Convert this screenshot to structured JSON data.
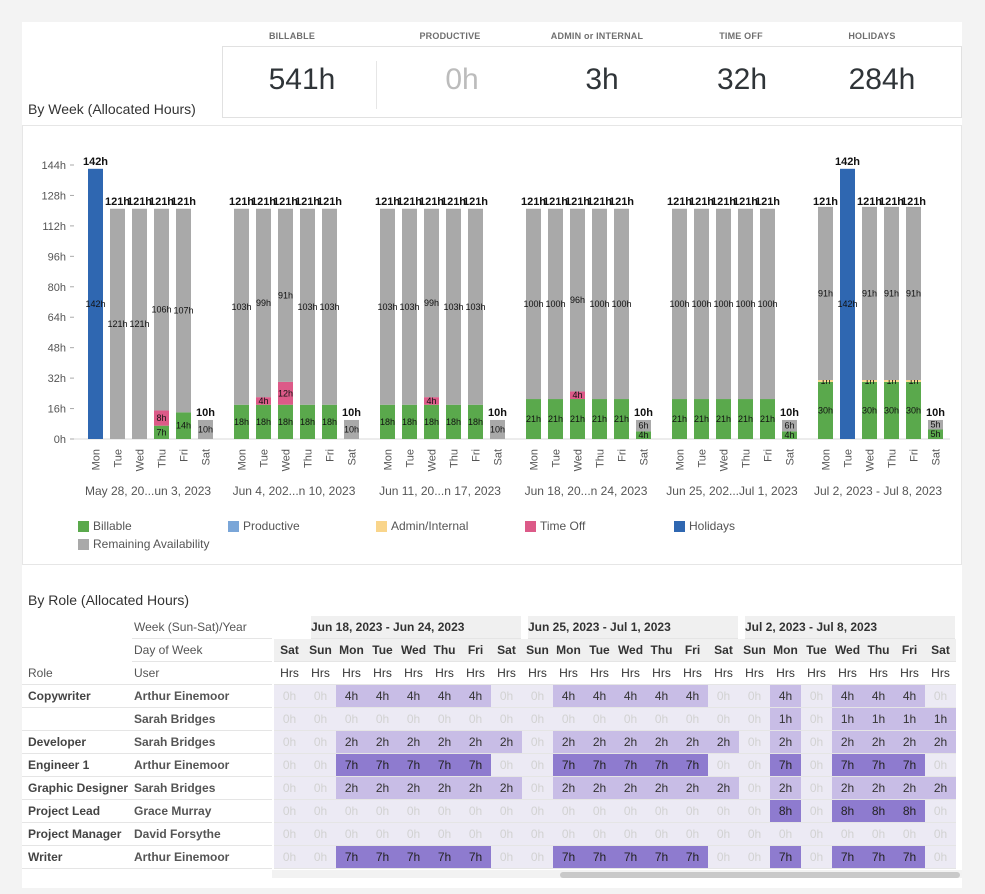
{
  "summary": {
    "labels": [
      "BILLABLE",
      "PRODUCTIVE",
      "ADMIN or INTERNAL",
      "TIME OFF",
      "HOLIDAYS"
    ],
    "values": [
      "541h",
      "0h",
      "3h",
      "32h",
      "284h"
    ]
  },
  "sections": {
    "by_week": "By Week (Allocated Hours)",
    "by_role": "By Role (Allocated Hours)"
  },
  "legend": [
    {
      "label": "Billable",
      "color": "#5aa94c"
    },
    {
      "label": "Productive",
      "color": "#7aa6d8"
    },
    {
      "label": "Admin/Internal",
      "color": "#f9d58b"
    },
    {
      "label": "Time Off",
      "color": "#dc5a88"
    },
    {
      "label": "Holidays",
      "color": "#2f67b1"
    },
    {
      "label": "Remaining Availability",
      "color": "#a9a9a9"
    }
  ],
  "chart_data": {
    "type": "bar",
    "ylim": [
      0,
      144
    ],
    "ytick_labels": [
      "0h",
      "16h",
      "32h",
      "48h",
      "64h",
      "80h",
      "96h",
      "112h",
      "128h",
      "144h"
    ],
    "weeks": [
      "May 28, 20...un 3, 2023",
      "Jun 4, 202...n 10, 2023",
      "Jun 11, 20...n 17, 2023",
      "Jun 18, 20...n 24, 2023",
      "Jun 25, 202...Jul 1, 2023",
      "Jul 2, 2023 - Jul 8, 2023"
    ],
    "days": [
      "Mon",
      "Tue",
      "Wed",
      "Thu",
      "Fri",
      "Sat"
    ],
    "series": [
      {
        "name": "Billable",
        "color": "#5aa94c",
        "values": [
          [
            0,
            0,
            0,
            7,
            14,
            0
          ],
          [
            18,
            18,
            18,
            18,
            18,
            0
          ],
          [
            18,
            18,
            18,
            18,
            18,
            0
          ],
          [
            21,
            21,
            21,
            21,
            21,
            4
          ],
          [
            21,
            21,
            21,
            21,
            21,
            4
          ],
          [
            30,
            0,
            30,
            30,
            30,
            5
          ]
        ]
      },
      {
        "name": "Admin/Internal",
        "color": "#f9d58b",
        "values": [
          [
            0,
            0,
            0,
            0,
            0,
            0
          ],
          [
            0,
            0,
            0,
            0,
            0,
            0
          ],
          [
            0,
            0,
            0,
            0,
            0,
            0
          ],
          [
            0,
            0,
            0,
            0,
            0,
            0
          ],
          [
            0,
            0,
            0,
            0,
            0,
            0
          ],
          [
            1,
            0,
            1,
            1,
            1,
            0
          ]
        ]
      },
      {
        "name": "Time Off",
        "color": "#dc5a88",
        "values": [
          [
            0,
            0,
            0,
            8,
            0,
            0
          ],
          [
            0,
            4,
            12,
            0,
            0,
            0
          ],
          [
            0,
            0,
            4,
            0,
            0,
            0
          ],
          [
            0,
            0,
            4,
            0,
            0,
            0
          ],
          [
            0,
            0,
            0,
            0,
            0,
            0
          ],
          [
            0,
            0,
            0,
            0,
            0,
            0
          ]
        ]
      },
      {
        "name": "Holidays",
        "color": "#2f67b1",
        "values": [
          [
            142,
            0,
            0,
            0,
            0,
            0
          ],
          [
            0,
            0,
            0,
            0,
            0,
            0
          ],
          [
            0,
            0,
            0,
            0,
            0,
            0
          ],
          [
            0,
            0,
            0,
            0,
            0,
            0
          ],
          [
            0,
            0,
            0,
            0,
            0,
            0
          ],
          [
            0,
            142,
            0,
            0,
            0,
            0
          ]
        ]
      },
      {
        "name": "Remaining Availability",
        "color": "#a9a9a9",
        "values": [
          [
            0,
            121,
            121,
            106,
            107,
            10
          ],
          [
            103,
            99,
            91,
            103,
            103,
            10
          ],
          [
            103,
            103,
            99,
            103,
            103,
            10
          ],
          [
            100,
            100,
            96,
            100,
            100,
            6
          ],
          [
            100,
            100,
            100,
            100,
            100,
            6
          ],
          [
            91,
            0,
            91,
            91,
            91,
            5
          ]
        ]
      }
    ],
    "totals": [
      [
        142,
        121,
        121,
        121,
        121,
        10
      ],
      [
        121,
        121,
        121,
        121,
        121,
        10
      ],
      [
        121,
        121,
        121,
        121,
        121,
        10
      ],
      [
        121,
        121,
        121,
        121,
        121,
        10
      ],
      [
        121,
        121,
        121,
        121,
        121,
        10
      ],
      [
        121,
        142,
        121,
        121,
        121,
        10
      ]
    ]
  },
  "table": {
    "left_headers": {
      "week_label": "Week (Sun-Sat)/Year",
      "day_label": "Day of Week",
      "role_col": "Role",
      "user_col": "User"
    },
    "week_groups": [
      {
        "label": "Jun 18, 2023 - Jun 24, 2023"
      },
      {
        "label": "Jun 25, 2023 - Jul 1, 2023"
      },
      {
        "label": "Jul 2, 2023 - Jul 8, 2023"
      }
    ],
    "days": [
      "Sat",
      "Sun",
      "Mon",
      "Tue",
      "Wed",
      "Thu",
      "Fri",
      "Sat",
      "Sun",
      "Mon",
      "Tue",
      "Wed",
      "Thu",
      "Fri",
      "Sat",
      "Sun",
      "Mon",
      "Tue",
      "Wed",
      "Thu",
      "Fri",
      "Sat"
    ],
    "hrs_label": "Hrs",
    "rows": [
      {
        "role": "Copywriter",
        "user": "Arthur Einemoor",
        "cells": [
          "0h",
          "0h",
          "4h",
          "4h",
          "4h",
          "4h",
          "4h",
          "0h",
          "0h",
          "4h",
          "4h",
          "4h",
          "4h",
          "4h",
          "0h",
          "0h",
          "4h",
          "0h",
          "4h",
          "4h",
          "4h",
          "0h"
        ]
      },
      {
        "role": "",
        "user": "Sarah Bridges",
        "cells": [
          "0h",
          "0h",
          "0h",
          "0h",
          "0h",
          "0h",
          "0h",
          "0h",
          "0h",
          "0h",
          "0h",
          "0h",
          "0h",
          "0h",
          "0h",
          "0h",
          "1h",
          "0h",
          "1h",
          "1h",
          "1h",
          "1h"
        ]
      },
      {
        "role": "Developer",
        "user": "Sarah Bridges",
        "cells": [
          "0h",
          "0h",
          "2h",
          "2h",
          "2h",
          "2h",
          "2h",
          "2h",
          "0h",
          "2h",
          "2h",
          "2h",
          "2h",
          "2h",
          "2h",
          "0h",
          "2h",
          "0h",
          "2h",
          "2h",
          "2h",
          "2h"
        ]
      },
      {
        "role": "Engineer 1",
        "user": "Arthur Einemoor",
        "cells": [
          "0h",
          "0h",
          "7h",
          "7h",
          "7h",
          "7h",
          "7h",
          "0h",
          "0h",
          "7h",
          "7h",
          "7h",
          "7h",
          "7h",
          "0h",
          "0h",
          "7h",
          "0h",
          "7h",
          "7h",
          "7h",
          "0h"
        ]
      },
      {
        "role": "Graphic Designer",
        "user": "Sarah Bridges",
        "cells": [
          "0h",
          "0h",
          "2h",
          "2h",
          "2h",
          "2h",
          "2h",
          "2h",
          "0h",
          "2h",
          "2h",
          "2h",
          "2h",
          "2h",
          "2h",
          "0h",
          "2h",
          "0h",
          "2h",
          "2h",
          "2h",
          "2h"
        ]
      },
      {
        "role": "Project Lead",
        "user": "Grace Murray",
        "cells": [
          "0h",
          "0h",
          "0h",
          "0h",
          "0h",
          "0h",
          "0h",
          "0h",
          "0h",
          "0h",
          "0h",
          "0h",
          "0h",
          "0h",
          "0h",
          "0h",
          "8h",
          "0h",
          "8h",
          "8h",
          "8h",
          "0h"
        ]
      },
      {
        "role": "Project Manager",
        "user": "David Forsythe",
        "cells": [
          "0h",
          "0h",
          "0h",
          "0h",
          "0h",
          "0h",
          "0h",
          "0h",
          "0h",
          "0h",
          "0h",
          "0h",
          "0h",
          "0h",
          "0h",
          "0h",
          "0h",
          "0h",
          "0h",
          "0h",
          "0h",
          "0h"
        ]
      },
      {
        "role": "Writer",
        "user": "Arthur Einemoor",
        "cells": [
          "0h",
          "0h",
          "7h",
          "7h",
          "7h",
          "7h",
          "7h",
          "0h",
          "0h",
          "7h",
          "7h",
          "7h",
          "7h",
          "7h",
          "0h",
          "0h",
          "7h",
          "0h",
          "7h",
          "7h",
          "7h",
          "0h"
        ]
      }
    ]
  }
}
